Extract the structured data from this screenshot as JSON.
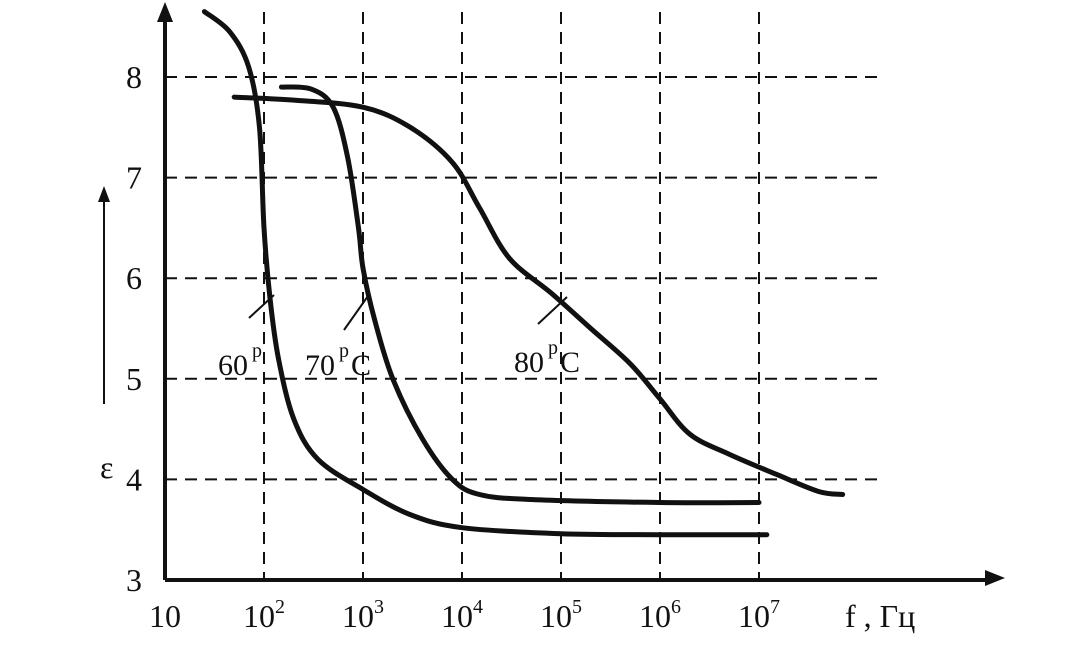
{
  "chart_data": {
    "type": "line",
    "title": "",
    "xlabel": "f , Гц",
    "ylabel": "ε",
    "x_scale": "log",
    "x_tick_labels": [
      {
        "base": "10",
        "exp": ""
      },
      {
        "base": "10",
        "exp": "2"
      },
      {
        "base": "10",
        "exp": "3"
      },
      {
        "base": "10",
        "exp": "4"
      },
      {
        "base": "10",
        "exp": "5"
      },
      {
        "base": "10",
        "exp": "6"
      },
      {
        "base": "10",
        "exp": "7"
      }
    ],
    "y_ticks": [
      3,
      4,
      5,
      6,
      7,
      8
    ],
    "xlim": [
      10,
      100000000
    ],
    "ylim": [
      3,
      8.9
    ],
    "grid": true,
    "series": [
      {
        "name": "60 °C",
        "label_text": {
          "value": "60",
          "unit": ""
        },
        "points": [
          [
            25,
            8.65
          ],
          [
            45,
            8.45
          ],
          [
            70,
            8.1
          ],
          [
            90,
            7.5
          ],
          [
            100,
            6.5
          ],
          [
            115,
            5.8
          ],
          [
            140,
            5.2
          ],
          [
            200,
            4.6
          ],
          [
            350,
            4.2
          ],
          [
            1000,
            3.9
          ],
          [
            3000,
            3.65
          ],
          [
            10000,
            3.52
          ],
          [
            100000,
            3.46
          ],
          [
            1000000,
            3.45
          ],
          [
            12000000,
            3.45
          ]
        ]
      },
      {
        "name": "70 °C",
        "label_text": {
          "value": "70",
          "unit": "C"
        },
        "points": [
          [
            150,
            7.9
          ],
          [
            300,
            7.88
          ],
          [
            500,
            7.7
          ],
          [
            700,
            7.2
          ],
          [
            900,
            6.5
          ],
          [
            1000,
            6.1
          ],
          [
            1300,
            5.6
          ],
          [
            2000,
            5.0
          ],
          [
            4000,
            4.4
          ],
          [
            8000,
            4.0
          ],
          [
            15000,
            3.85
          ],
          [
            50000,
            3.8
          ],
          [
            1000000,
            3.77
          ],
          [
            10000000,
            3.77
          ]
        ]
      },
      {
        "name": "80 °C",
        "label_text": {
          "value": "80",
          "unit": "C"
        },
        "points": [
          [
            50,
            7.8
          ],
          [
            200,
            7.77
          ],
          [
            1000,
            7.7
          ],
          [
            3000,
            7.5
          ],
          [
            8000,
            7.15
          ],
          [
            15000,
            6.7
          ],
          [
            30000,
            6.2
          ],
          [
            80000,
            5.85
          ],
          [
            200000,
            5.5
          ],
          [
            500000,
            5.15
          ],
          [
            1000000,
            4.8
          ],
          [
            2000000,
            4.45
          ],
          [
            5000000,
            4.25
          ],
          [
            15000000,
            4.05
          ],
          [
            40000000,
            3.88
          ],
          [
            70000000,
            3.85
          ]
        ]
      }
    ]
  }
}
